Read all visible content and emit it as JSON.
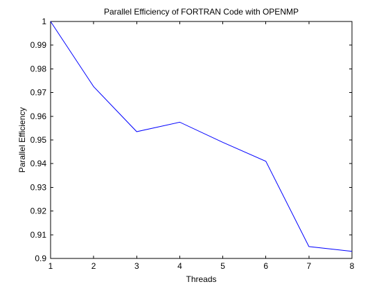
{
  "chart_data": {
    "type": "line",
    "title": "Parallel Efficiency of FORTRAN Code with OPENMP",
    "xlabel": "Threads",
    "ylabel": "Parallel Efficiency",
    "xlim": [
      1,
      8
    ],
    "ylim": [
      0.9,
      1.0
    ],
    "xticks": [
      1,
      2,
      3,
      4,
      5,
      6,
      7,
      8
    ],
    "xtick_labels": [
      "1",
      "2",
      "3",
      "4",
      "5",
      "6",
      "7",
      "8"
    ],
    "yticks": [
      0.9,
      0.91,
      0.92,
      0.93,
      0.94,
      0.95,
      0.96,
      0.97,
      0.98,
      0.99,
      1.0
    ],
    "ytick_labels": [
      "0.9",
      "0.91",
      "0.92",
      "0.93",
      "0.94",
      "0.95",
      "0.96",
      "0.97",
      "0.98",
      "0.99",
      "1"
    ],
    "grid": false,
    "series": [
      {
        "color": "#0000ff",
        "x": [
          1,
          2,
          3,
          4,
          5,
          6,
          7,
          8
        ],
        "y": [
          1.0,
          0.9725,
          0.9535,
          0.9575,
          0.949,
          0.941,
          0.905,
          0.903
        ]
      }
    ]
  }
}
